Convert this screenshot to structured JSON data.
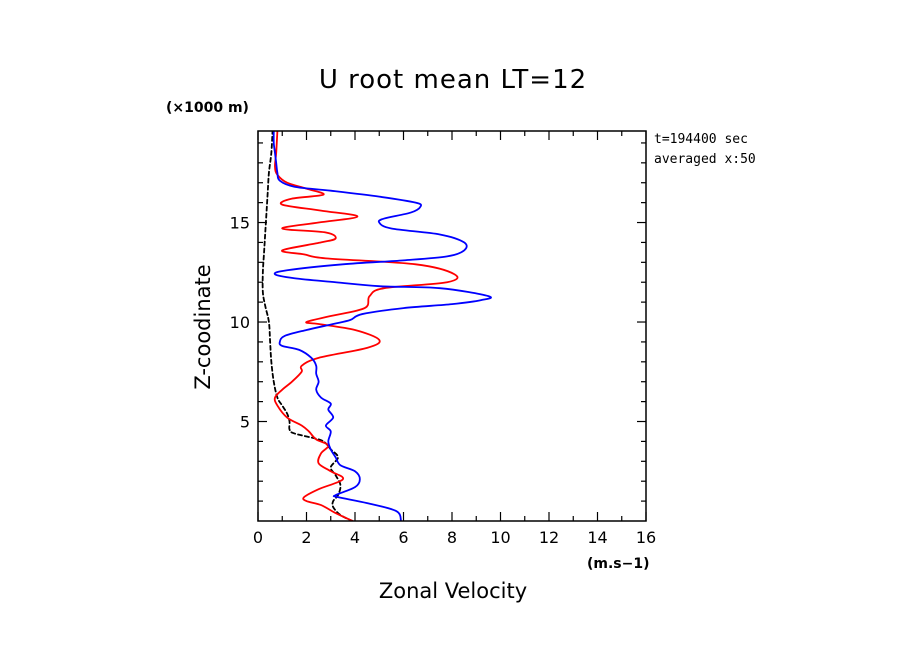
{
  "chart_data": {
    "type": "line",
    "title": "U root mean LT=12",
    "xlabel": "Zonal Velocity",
    "ylabel": "Z-coodinate",
    "x_unit": "(m.s−1)",
    "y_unit": "(×1000 m)",
    "annotations": [
      "t=194400 sec",
      "averaged  x:50"
    ],
    "xlim": [
      0,
      16
    ],
    "ylim": [
      0,
      19.6
    ],
    "x_ticks": [
      0,
      2,
      4,
      6,
      8,
      10,
      12,
      14,
      16
    ],
    "y_ticks": [
      5,
      10,
      15
    ],
    "grid": false,
    "legend": "none",
    "series": [
      {
        "color": "#000000",
        "dash": "dashed",
        "points": [
          [
            3.9,
            0
          ],
          [
            3.4,
            0.3
          ],
          [
            3.1,
            0.7
          ],
          [
            3.1,
            1
          ],
          [
            3.3,
            1.3
          ],
          [
            3.4,
            1.8
          ],
          [
            3.2,
            2.3
          ],
          [
            3.0,
            2.7
          ],
          [
            3.3,
            3.2
          ],
          [
            3.0,
            3.6
          ],
          [
            2.8,
            3.9
          ],
          [
            2.5,
            4.1
          ],
          [
            1.5,
            4.4
          ],
          [
            1.3,
            4.6
          ],
          [
            1.3,
            5.0
          ],
          [
            1.2,
            5.4
          ],
          [
            1.0,
            5.8
          ],
          [
            0.8,
            6.2
          ],
          [
            0.65,
            7.0
          ],
          [
            0.55,
            8.0
          ],
          [
            0.5,
            9.0
          ],
          [
            0.45,
            10.0
          ],
          [
            0.3,
            10.8
          ],
          [
            0.2,
            11.5
          ],
          [
            0.2,
            12.5
          ],
          [
            0.25,
            13.5
          ],
          [
            0.3,
            14.5
          ],
          [
            0.35,
            15.5
          ],
          [
            0.4,
            16.5
          ],
          [
            0.45,
            17.5
          ],
          [
            0.55,
            18.5
          ],
          [
            0.6,
            19.6
          ]
        ]
      },
      {
        "color": "#ff0000",
        "dash": "solid",
        "points": [
          [
            3.9,
            0
          ],
          [
            3.2,
            0.4
          ],
          [
            2.6,
            0.8
          ],
          [
            2.0,
            1.0
          ],
          [
            1.9,
            1.2
          ],
          [
            2.5,
            1.6
          ],
          [
            3.5,
            2.1
          ],
          [
            3.0,
            2.5
          ],
          [
            2.5,
            2.9
          ],
          [
            2.6,
            3.4
          ],
          [
            2.9,
            3.8
          ],
          [
            2.4,
            4.1
          ],
          [
            2.1,
            4.5
          ],
          [
            1.8,
            4.8
          ],
          [
            1.2,
            5.2
          ],
          [
            0.8,
            5.8
          ],
          [
            0.7,
            6.2
          ],
          [
            1.0,
            6.6
          ],
          [
            1.4,
            7.0
          ],
          [
            1.8,
            7.5
          ],
          [
            1.8,
            7.8
          ],
          [
            2.5,
            8.2
          ],
          [
            4.5,
            8.7
          ],
          [
            5.0,
            9.1
          ],
          [
            4.0,
            9.6
          ],
          [
            2.5,
            9.9
          ],
          [
            2.0,
            10.0
          ],
          [
            3.0,
            10.3
          ],
          [
            4.4,
            10.7
          ],
          [
            4.6,
            11.3
          ],
          [
            5.2,
            11.7
          ],
          [
            7.8,
            12.0
          ],
          [
            8.1,
            12.4
          ],
          [
            6.5,
            12.9
          ],
          [
            2.8,
            13.2
          ],
          [
            1.9,
            13.4
          ],
          [
            1.0,
            13.6
          ],
          [
            2.6,
            14.0
          ],
          [
            3.2,
            14.2
          ],
          [
            2.8,
            14.5
          ],
          [
            1.0,
            14.7
          ],
          [
            2.5,
            15.0
          ],
          [
            4.1,
            15.3
          ],
          [
            2.6,
            15.6
          ],
          [
            1.0,
            15.9
          ],
          [
            1.4,
            16.2
          ],
          [
            2.7,
            16.4
          ],
          [
            2.0,
            16.7
          ],
          [
            1.2,
            17.0
          ],
          [
            0.8,
            17.4
          ],
          [
            0.7,
            17.8
          ],
          [
            0.75,
            18.5
          ],
          [
            0.8,
            19.6
          ]
        ]
      },
      {
        "color": "#0000ff",
        "dash": "solid",
        "points": [
          [
            5.9,
            0
          ],
          [
            5.7,
            0.5
          ],
          [
            4.5,
            0.9
          ],
          [
            3.3,
            1.2
          ],
          [
            3.2,
            1.3
          ],
          [
            4.0,
            1.7
          ],
          [
            4.2,
            2.1
          ],
          [
            4.0,
            2.5
          ],
          [
            3.4,
            2.8
          ],
          [
            3.2,
            3.2
          ],
          [
            3.0,
            3.6
          ],
          [
            2.9,
            4.0
          ],
          [
            3.0,
            4.5
          ],
          [
            2.8,
            4.8
          ],
          [
            3.1,
            5.2
          ],
          [
            2.9,
            5.6
          ],
          [
            3.0,
            5.9
          ],
          [
            2.6,
            6.2
          ],
          [
            2.4,
            6.6
          ],
          [
            2.5,
            7.0
          ],
          [
            2.4,
            7.4
          ],
          [
            2.4,
            7.8
          ],
          [
            2.2,
            8.2
          ],
          [
            1.7,
            8.6
          ],
          [
            1.0,
            8.8
          ],
          [
            0.9,
            9.0
          ],
          [
            1.1,
            9.3
          ],
          [
            2.0,
            9.6
          ],
          [
            3.1,
            9.9
          ],
          [
            3.8,
            10.1
          ],
          [
            4.3,
            10.4
          ],
          [
            6.0,
            10.7
          ],
          [
            8.0,
            10.9
          ],
          [
            9.2,
            11.1
          ],
          [
            9.5,
            11.3
          ],
          [
            7.5,
            11.7
          ],
          [
            5.0,
            11.8
          ],
          [
            3.2,
            12.0
          ],
          [
            1.5,
            12.2
          ],
          [
            0.7,
            12.4
          ],
          [
            1.2,
            12.6
          ],
          [
            3.5,
            12.9
          ],
          [
            6.0,
            13.1
          ],
          [
            7.8,
            13.3
          ],
          [
            8.5,
            13.6
          ],
          [
            8.5,
            14.0
          ],
          [
            7.5,
            14.4
          ],
          [
            5.5,
            14.7
          ],
          [
            5.0,
            15.0
          ],
          [
            5.2,
            15.2
          ],
          [
            6.3,
            15.5
          ],
          [
            6.7,
            15.8
          ],
          [
            6.5,
            16.0
          ],
          [
            5.0,
            16.3
          ],
          [
            3.0,
            16.6
          ],
          [
            1.5,
            16.8
          ],
          [
            0.9,
            17.1
          ],
          [
            0.8,
            17.5
          ],
          [
            0.75,
            18.0
          ],
          [
            0.7,
            18.5
          ],
          [
            0.65,
            19.0
          ],
          [
            0.65,
            19.6
          ]
        ]
      }
    ]
  }
}
